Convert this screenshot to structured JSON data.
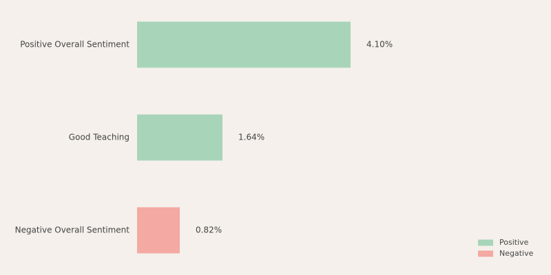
{
  "chart_data": {
    "type": "hbar",
    "categories": [
      "Positive Overall Sentiment",
      "Good Teaching",
      "Negative Overall Sentiment"
    ],
    "series": [
      {
        "name": "Positive",
        "color": "#a8d5ba",
        "values": [
          4.1,
          1.64,
          null
        ],
        "value_labels": [
          "4.10%",
          "1.64%",
          null
        ]
      },
      {
        "name": "Negative",
        "color": "#f4a9a3",
        "values": [
          null,
          null,
          0.82
        ],
        "value_labels": [
          null,
          null,
          "0.82%"
        ]
      }
    ],
    "legend": "lower right"
  }
}
